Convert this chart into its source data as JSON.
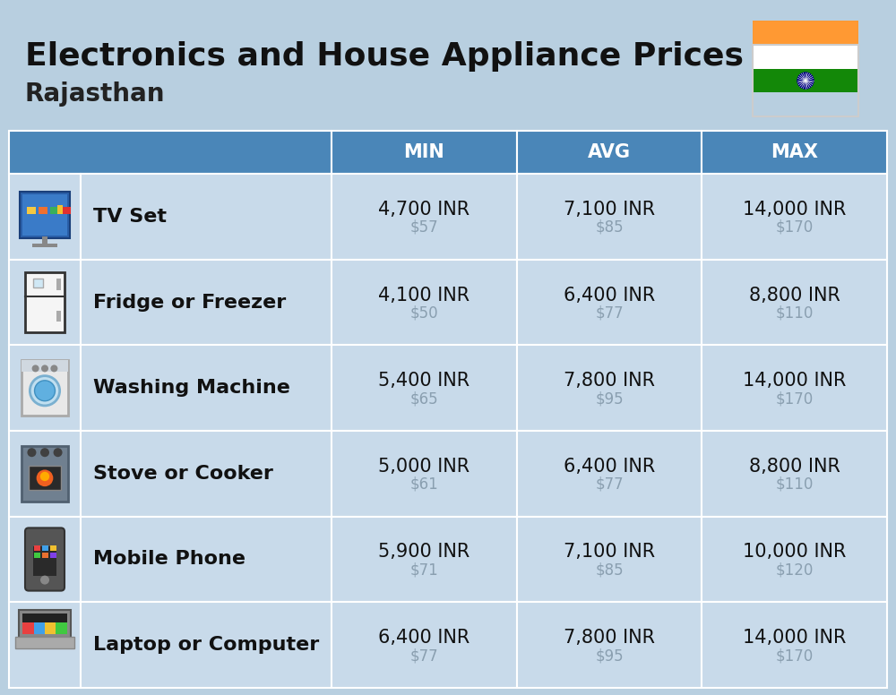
{
  "title": "Electronics and House Appliance Prices",
  "subtitle": "Rajasthan",
  "bg_color": "#b8cfe0",
  "header_bg": "#4a86b8",
  "header_text_color": "#ffffff",
  "row_bg": "#c8daea",
  "separator_color": "#ffffff",
  "col_headers": [
    "MIN",
    "AVG",
    "MAX"
  ],
  "items": [
    {
      "name": "TV Set",
      "min_inr": "4,700 INR",
      "min_usd": "$57",
      "avg_inr": "7,100 INR",
      "avg_usd": "$85",
      "max_inr": "14,000 INR",
      "max_usd": "$170"
    },
    {
      "name": "Fridge or Freezer",
      "min_inr": "4,100 INR",
      "min_usd": "$50",
      "avg_inr": "6,400 INR",
      "avg_usd": "$77",
      "max_inr": "8,800 INR",
      "max_usd": "$110"
    },
    {
      "name": "Washing Machine",
      "min_inr": "5,400 INR",
      "min_usd": "$65",
      "avg_inr": "7,800 INR",
      "avg_usd": "$95",
      "max_inr": "14,000 INR",
      "max_usd": "$170"
    },
    {
      "name": "Stove or Cooker",
      "min_inr": "5,000 INR",
      "min_usd": "$61",
      "avg_inr": "6,400 INR",
      "avg_usd": "$77",
      "max_inr": "8,800 INR",
      "max_usd": "$110"
    },
    {
      "name": "Mobile Phone",
      "min_inr": "5,900 INR",
      "min_usd": "$71",
      "avg_inr": "7,100 INR",
      "avg_usd": "$85",
      "max_inr": "10,000 INR",
      "max_usd": "$120"
    },
    {
      "name": "Laptop or Computer",
      "min_inr": "6,400 INR",
      "min_usd": "$77",
      "avg_inr": "7,800 INR",
      "avg_usd": "$95",
      "max_inr": "14,000 INR",
      "max_usd": "$170"
    }
  ],
  "title_fontsize": 26,
  "subtitle_fontsize": 20,
  "header_fontsize": 15,
  "item_name_fontsize": 16,
  "value_fontsize": 15,
  "usd_fontsize": 12,
  "usd_color": "#8a9fb0",
  "border_color": "#ffffff",
  "flag_orange": "#FF9933",
  "flag_white": "#FFFFFF",
  "flag_green": "#138808",
  "flag_navy": "#000080"
}
